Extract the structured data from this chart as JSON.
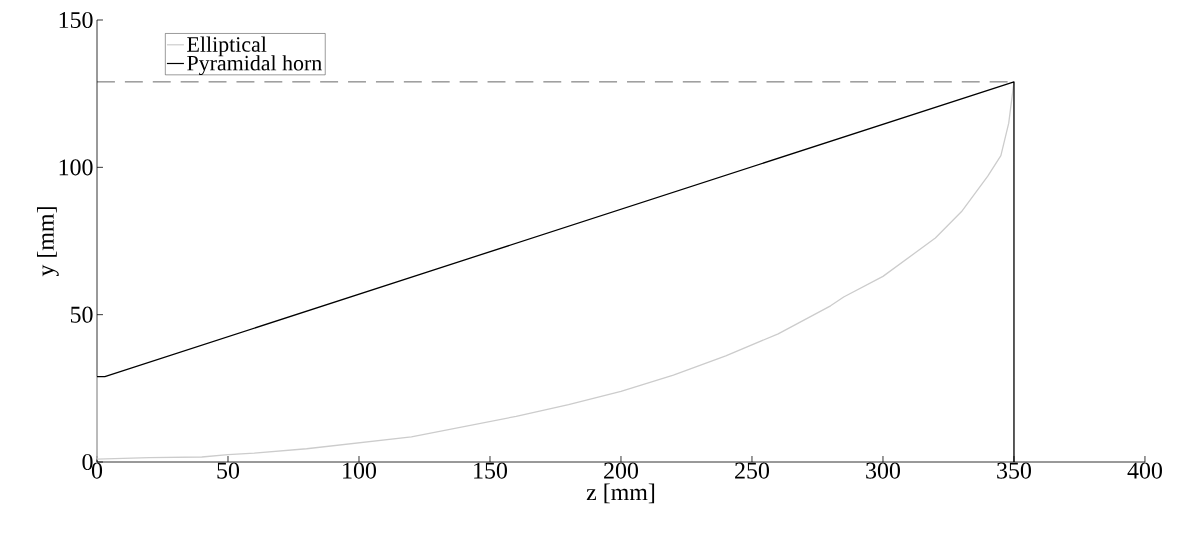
{
  "chart_data": {
    "type": "line",
    "xlabel": "z [mm]",
    "ylabel": "y [mm]",
    "xlim": [
      0,
      400
    ],
    "ylim": [
      0,
      150
    ],
    "xticks": [
      0,
      50,
      100,
      150,
      200,
      250,
      300,
      350,
      400
    ],
    "yticks": [
      0,
      50,
      100,
      150
    ],
    "grid": false,
    "legend": "top left",
    "marker": "none",
    "series": [
      {
        "name": "Elliptical",
        "color": "#cccccc",
        "x": [
          0,
          0,
          20,
          40,
          50,
          60,
          80,
          100,
          120,
          140,
          160,
          180,
          200,
          220,
          240,
          260,
          280,
          285,
          300,
          320,
          330,
          340,
          345,
          348,
          350
        ],
        "values": [
          29,
          1,
          1.5,
          1.7,
          2.5,
          3,
          4.5,
          6.5,
          8.5,
          12,
          15.5,
          19.5,
          24,
          29.5,
          36,
          43.5,
          53,
          56,
          63,
          76,
          85,
          97,
          104,
          115,
          129
        ]
      },
      {
        "name": "Pyramidal horn",
        "color": "#000000",
        "x": [
          0,
          3,
          350,
          350
        ],
        "values": [
          29,
          29,
          129,
          0
        ]
      },
      {
        "color": "#000000",
        "line_style": "dashed",
        "x": [
          0,
          350
        ],
        "values": [
          129,
          129
        ]
      }
    ]
  }
}
